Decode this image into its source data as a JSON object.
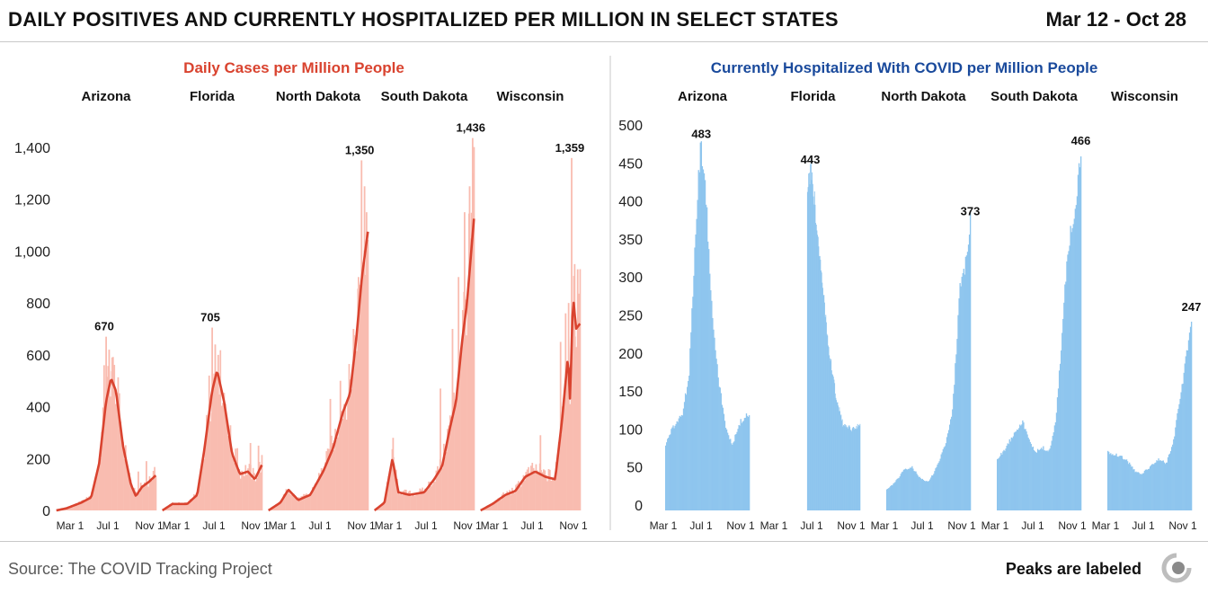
{
  "header": {
    "title": "DAILY POSITIVES AND CURRENTLY HOSPITALIZED PER MILLION IN SELECT STATES",
    "date_range": "Mar 12 - Oct 28"
  },
  "footer": {
    "source": "Source: The COVID Tracking Project",
    "note": "Peaks are labeled",
    "logo_icon": "covid-tracking-project-logo-icon"
  },
  "colors": {
    "cases_bar": "#f9bcb0",
    "cases_line": "#d9432f",
    "cases_title": "#d9432f",
    "hosp_bar": "#8ec5ee",
    "hosp_title": "#1a4a9c",
    "divider": "#c8c8c8"
  },
  "chart_data": [
    {
      "type": "bar",
      "title": "Daily Cases per Million People",
      "series_overlay": "line",
      "y_ticks": [
        0,
        200,
        400,
        600,
        800,
        1000,
        1200,
        1400
      ],
      "y_tick_labels": [
        "0",
        "200",
        "400",
        "600",
        "800",
        "1,000",
        "1,200",
        "1,400"
      ],
      "ylim": [
        0,
        1450
      ],
      "x_tick_labels": [
        "Mar 1",
        "Jul 1",
        "Nov 1"
      ],
      "grid": false,
      "panels": [
        {
          "name": "Arizona",
          "peak_label": "670",
          "knots": [
            [
              0,
              0
            ],
            [
              0.1,
              8
            ],
            [
              0.25,
              30
            ],
            [
              0.35,
              50
            ],
            [
              0.43,
              180
            ],
            [
              0.5,
              420
            ],
            [
              0.55,
              510
            ],
            [
              0.6,
              460
            ],
            [
              0.67,
              250
            ],
            [
              0.75,
              100
            ],
            [
              0.8,
              55
            ],
            [
              0.86,
              90
            ],
            [
              0.93,
              110
            ],
            [
              1,
              135
            ]
          ],
          "spikes": [
            [
              0.5,
              670
            ],
            [
              0.48,
              560
            ],
            [
              0.53,
              620
            ],
            [
              0.56,
              590
            ],
            [
              0.58,
              550
            ],
            [
              0.9,
              190
            ],
            [
              0.82,
              150
            ]
          ]
        },
        {
          "name": "Florida",
          "peak_label": "705",
          "knots": [
            [
              0,
              0
            ],
            [
              0.1,
              25
            ],
            [
              0.25,
              25
            ],
            [
              0.35,
              60
            ],
            [
              0.42,
              230
            ],
            [
              0.5,
              460
            ],
            [
              0.55,
              540
            ],
            [
              0.62,
              420
            ],
            [
              0.7,
              220
            ],
            [
              0.78,
              140
            ],
            [
              0.86,
              150
            ],
            [
              0.93,
              120
            ],
            [
              1,
              175
            ]
          ],
          "spikes": [
            [
              0.5,
              705
            ],
            [
              0.53,
              640
            ],
            [
              0.56,
              600
            ],
            [
              0.47,
              520
            ],
            [
              0.88,
              260
            ],
            [
              0.96,
              250
            ],
            [
              0.75,
              240
            ]
          ]
        },
        {
          "name": "North Dakota",
          "peak_label": "1,350",
          "knots": [
            [
              0,
              0
            ],
            [
              0.12,
              30
            ],
            [
              0.2,
              80
            ],
            [
              0.3,
              40
            ],
            [
              0.42,
              60
            ],
            [
              0.55,
              150
            ],
            [
              0.65,
              240
            ],
            [
              0.75,
              380
            ],
            [
              0.82,
              450
            ],
            [
              0.88,
              650
            ],
            [
              0.94,
              900
            ],
            [
              1,
              1075
            ]
          ],
          "spikes": [
            [
              0.93,
              1350
            ],
            [
              0.96,
              1250
            ],
            [
              0.98,
              1150
            ],
            [
              0.9,
              900
            ],
            [
              0.85,
              700
            ],
            [
              0.72,
              500
            ],
            [
              0.62,
              430
            ]
          ]
        },
        {
          "name": "South Dakota",
          "peak_label": "1,436",
          "knots": [
            [
              0,
              0
            ],
            [
              0.1,
              30
            ],
            [
              0.18,
              200
            ],
            [
              0.24,
              70
            ],
            [
              0.35,
              60
            ],
            [
              0.5,
              70
            ],
            [
              0.6,
              120
            ],
            [
              0.68,
              170
            ],
            [
              0.76,
              320
            ],
            [
              0.82,
              420
            ],
            [
              0.88,
              650
            ],
            [
              0.93,
              800
            ],
            [
              1,
              1125
            ]
          ],
          "spikes": [
            [
              0.98,
              1436
            ],
            [
              0.95,
              1250
            ],
            [
              0.9,
              1150
            ],
            [
              0.84,
              900
            ],
            [
              0.78,
              700
            ],
            [
              0.19,
              280
            ],
            [
              0.66,
              470
            ]
          ]
        },
        {
          "name": "Wisconsin",
          "peak_label": "1,359",
          "knots": [
            [
              0,
              0
            ],
            [
              0.12,
              25
            ],
            [
              0.25,
              60
            ],
            [
              0.35,
              75
            ],
            [
              0.45,
              130
            ],
            [
              0.55,
              150
            ],
            [
              0.65,
              130
            ],
            [
              0.75,
              120
            ],
            [
              0.82,
              350
            ],
            [
              0.88,
              600
            ],
            [
              0.9,
              420
            ],
            [
              0.93,
              830
            ],
            [
              0.96,
              700
            ],
            [
              1,
              720
            ]
          ],
          "spikes": [
            [
              0.91,
              1359
            ],
            [
              0.94,
              950
            ],
            [
              0.88,
              800
            ],
            [
              0.85,
              760
            ],
            [
              0.8,
              650
            ],
            [
              0.6,
              290
            ],
            [
              0.97,
              930
            ]
          ]
        }
      ]
    },
    {
      "type": "bar",
      "title": "Currently Hospitalized With COVID per Million People",
      "y_ticks": [
        0,
        50,
        100,
        150,
        200,
        250,
        300,
        350,
        400,
        450,
        500
      ],
      "y_tick_labels": [
        "0",
        "50",
        "100",
        "150",
        "200",
        "250",
        "300",
        "350",
        "400",
        "450",
        "500"
      ],
      "ylim": [
        -15,
        515
      ],
      "x_tick_labels": [
        "Mar 1",
        "Jul 1",
        "Nov 1"
      ],
      "grid": false,
      "panels": [
        {
          "name": "Arizona",
          "peak_label": "483",
          "start": 0.0,
          "knots": [
            [
              0,
              80
            ],
            [
              0.08,
              100
            ],
            [
              0.2,
              120
            ],
            [
              0.28,
              170
            ],
            [
              0.35,
              340
            ],
            [
              0.42,
              483
            ],
            [
              0.48,
              410
            ],
            [
              0.56,
              250
            ],
            [
              0.64,
              160
            ],
            [
              0.72,
              100
            ],
            [
              0.8,
              80
            ],
            [
              0.9,
              110
            ],
            [
              1,
              120
            ]
          ]
        },
        {
          "name": "Florida",
          "peak_label": "443",
          "start": 0.5,
          "knots": [
            [
              0,
              410
            ],
            [
              0.06,
              443
            ],
            [
              0.15,
              390
            ],
            [
              0.28,
              290
            ],
            [
              0.42,
              200
            ],
            [
              0.55,
              140
            ],
            [
              0.68,
              105
            ],
            [
              0.84,
              100
            ],
            [
              1,
              105
            ]
          ]
        },
        {
          "name": "North Dakota",
          "peak_label": "373",
          "start": 0.0,
          "knots": [
            [
              0,
              20
            ],
            [
              0.1,
              30
            ],
            [
              0.2,
              45
            ],
            [
              0.3,
              50
            ],
            [
              0.4,
              35
            ],
            [
              0.5,
              30
            ],
            [
              0.6,
              50
            ],
            [
              0.7,
              80
            ],
            [
              0.78,
              120
            ],
            [
              0.84,
              210
            ],
            [
              0.87,
              290
            ],
            [
              0.92,
              300
            ],
            [
              1,
              373
            ]
          ]
        },
        {
          "name": "South Dakota",
          "peak_label": "466",
          "start": 0.0,
          "knots": [
            [
              0,
              60
            ],
            [
              0.1,
              75
            ],
            [
              0.2,
              95
            ],
            [
              0.3,
              110
            ],
            [
              0.38,
              85
            ],
            [
              0.46,
              70
            ],
            [
              0.55,
              75
            ],
            [
              0.62,
              70
            ],
            [
              0.7,
              110
            ],
            [
              0.76,
              200
            ],
            [
              0.82,
              300
            ],
            [
              0.88,
              360
            ],
            [
              0.94,
              400
            ],
            [
              1,
              466
            ]
          ]
        },
        {
          "name": "Wisconsin",
          "peak_label": "247",
          "start": 0.0,
          "knots": [
            [
              0,
              70
            ],
            [
              0.12,
              65
            ],
            [
              0.22,
              60
            ],
            [
              0.32,
              45
            ],
            [
              0.4,
              40
            ],
            [
              0.5,
              50
            ],
            [
              0.6,
              60
            ],
            [
              0.7,
              55
            ],
            [
              0.78,
              80
            ],
            [
              0.85,
              130
            ],
            [
              0.92,
              180
            ],
            [
              1,
              247
            ]
          ]
        }
      ]
    }
  ]
}
